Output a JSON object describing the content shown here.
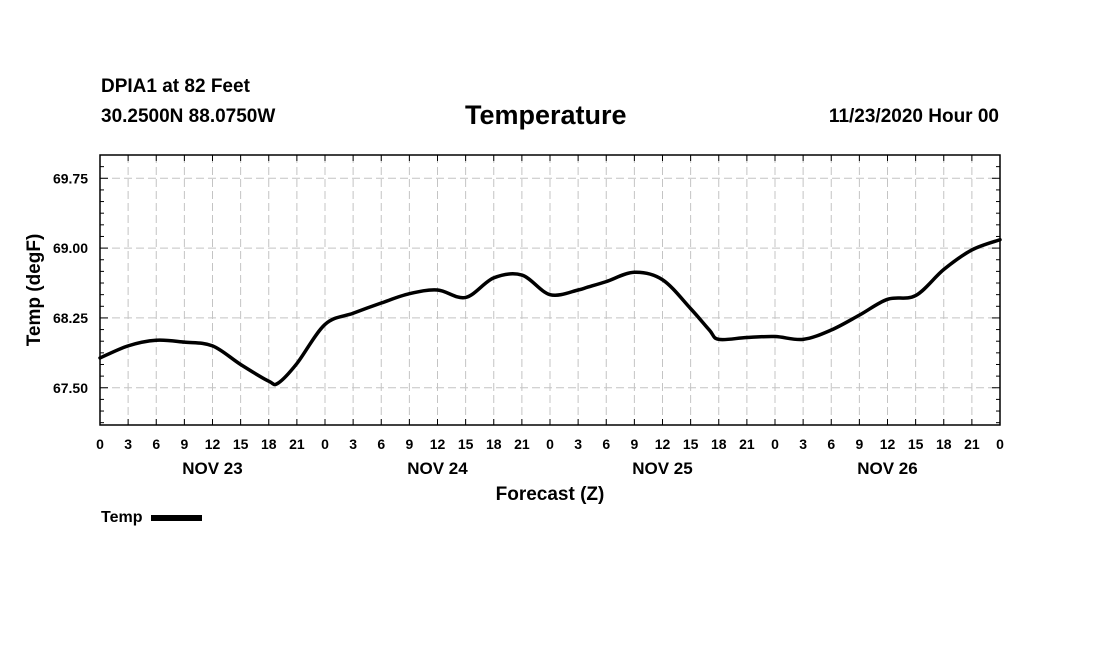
{
  "header": {
    "station": "DPIA1 at 82 Feet",
    "coordinates": "30.2500N 88.0750W",
    "title": "Temperature",
    "datetime": "11/23/2020 Hour 00"
  },
  "legend": {
    "label": "Temp",
    "color": "#000000"
  },
  "chart_data": {
    "type": "line",
    "title": "Temperature",
    "xlabel": "Forecast (Z)",
    "ylabel": "Temp (degF)",
    "x_unit": "hours since 11/23/2020 00Z",
    "xlim": [
      0,
      96
    ],
    "ylim": [
      67.1,
      70.0
    ],
    "yticks": [
      67.5,
      68.25,
      69.0,
      69.75
    ],
    "ytick_labels": [
      "67.50",
      "68.25",
      "69.00",
      "69.75"
    ],
    "xtick_hours": [
      0,
      3,
      6,
      9,
      12,
      15,
      18,
      21,
      24,
      27,
      30,
      33,
      36,
      39,
      42,
      45,
      48,
      51,
      54,
      57,
      60,
      63,
      66,
      69,
      72,
      75,
      78,
      81,
      84,
      87,
      90,
      93,
      96
    ],
    "xtick_labels": [
      "0",
      "3",
      "6",
      "9",
      "12",
      "15",
      "18",
      "21",
      "0",
      "3",
      "6",
      "9",
      "12",
      "15",
      "18",
      "21",
      "0",
      "3",
      "6",
      "9",
      "12",
      "15",
      "18",
      "21",
      "0",
      "3",
      "6",
      "9",
      "12",
      "15",
      "18",
      "21",
      "0"
    ],
    "day_labels": [
      {
        "label": "NOV 23",
        "center_hour": 12
      },
      {
        "label": "NOV 24",
        "center_hour": 36
      },
      {
        "label": "NOV 25",
        "center_hour": 60
      },
      {
        "label": "NOV 26",
        "center_hour": 84
      }
    ],
    "grid": true,
    "series": [
      {
        "name": "Temp",
        "color": "#000000",
        "x": [
          0,
          3,
          6,
          9,
          12,
          15,
          18,
          19,
          21,
          24,
          27,
          30,
          33,
          36,
          39,
          42,
          45,
          48,
          51,
          52,
          54,
          57,
          60,
          63,
          65,
          66,
          69,
          72,
          75,
          78,
          81,
          84,
          87,
          90,
          93,
          96
        ],
        "y": [
          67.82,
          67.95,
          68.01,
          67.99,
          67.95,
          67.75,
          67.57,
          67.55,
          67.76,
          68.18,
          68.3,
          68.41,
          68.51,
          68.55,
          68.47,
          68.68,
          68.71,
          68.5,
          68.55,
          68.58,
          68.64,
          68.74,
          68.66,
          68.35,
          68.12,
          68.02,
          68.04,
          68.05,
          68.02,
          68.12,
          68.28,
          68.45,
          68.49,
          68.77,
          68.98,
          69.09
        ]
      }
    ]
  }
}
